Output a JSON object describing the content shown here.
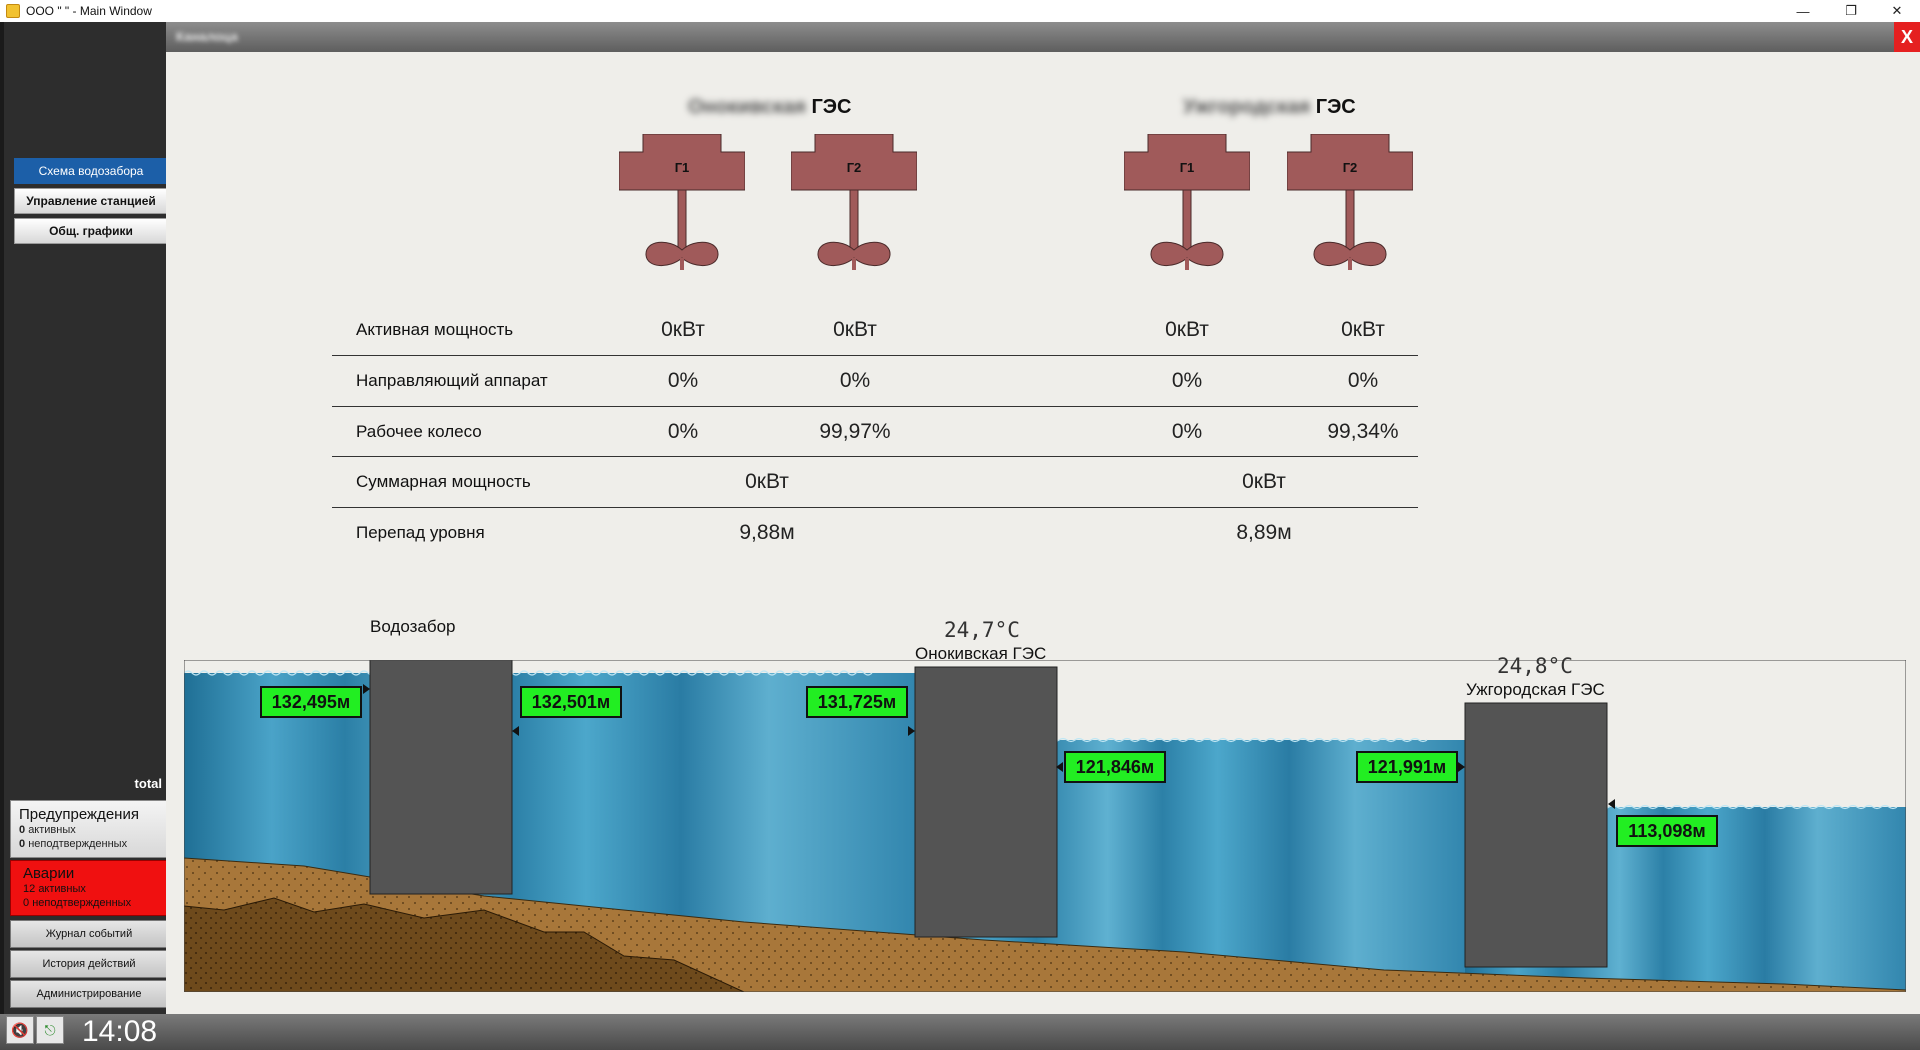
{
  "window": {
    "title": "ООО \"                  \" - Main Window",
    "minimize_glyph": "—",
    "maximize_glyph": "❐",
    "close_glyph": "✕"
  },
  "panel": {
    "title": "Каналоца",
    "close_label": "X"
  },
  "sidebar": {
    "nav": [
      {
        "label": "Схема водозабора",
        "active": true
      },
      {
        "label": "Управление станцией",
        "active": false
      },
      {
        "label": "Общ. графики",
        "active": false
      }
    ],
    "total_label": "total",
    "warnings": {
      "title": "Предупреждения",
      "active_count": "0",
      "active_label": "активных",
      "unack_count": "0",
      "unack_label": "неподтвержденных"
    },
    "alarms": {
      "title": "Аварии",
      "active_count": "12",
      "active_label": "активных",
      "unack_count": "0",
      "unack_label": "неподтвержденных"
    },
    "buttons": [
      {
        "label": "Журнал событий"
      },
      {
        "label": "История действий"
      },
      {
        "label": "Администрирование"
      }
    ],
    "clock": "14:08"
  },
  "stations": [
    {
      "name_hidden": "Онокивская",
      "suffix": "ГЭС",
      "generators": [
        "Г1",
        "Г2"
      ],
      "active_power": [
        "0кВт",
        "0кВт"
      ],
      "guide_vane": [
        "0%",
        "0%"
      ],
      "runner": [
        "0%",
        "99,97%"
      ],
      "total_power": "0кВт",
      "head": "9,88м"
    },
    {
      "name_hidden": "Ужгородская",
      "suffix": "ГЭС",
      "generators": [
        "Г1",
        "Г2"
      ],
      "active_power": [
        "0кВт",
        "0кВт"
      ],
      "guide_vane": [
        "0%",
        "0%"
      ],
      "runner": [
        "0%",
        "99,34%"
      ],
      "total_power": "0кВт",
      "head": "8,89м"
    }
  ],
  "table_labels": {
    "active_power": "Активная мощность",
    "guide_vane": "Направляющий аппарат",
    "runner": "Рабочее колесо",
    "total_power": "Суммарная мощность",
    "head": "Перепад уровня"
  },
  "scheme": {
    "intake_label": "Водозабор",
    "station1_label": "Онокивская ГЭС",
    "station1_temp": "24,7°C",
    "station2_label": "Ужгородская ГЭС",
    "station2_temp": "24,8°C",
    "levels": {
      "intake_up": "132,495м",
      "intake_down": "132,501м",
      "st1_up": "131,725м",
      "st1_down": "121,846м",
      "st2_up": "121,991м",
      "st2_down": "113,098м"
    },
    "colors": {
      "water": "#3f96bb",
      "sediment": "#a8773a",
      "deep_soil": "#6e4a1c",
      "dam": "#545454",
      "level_box": "#22ee22",
      "turbine": "#a05a5a"
    }
  }
}
